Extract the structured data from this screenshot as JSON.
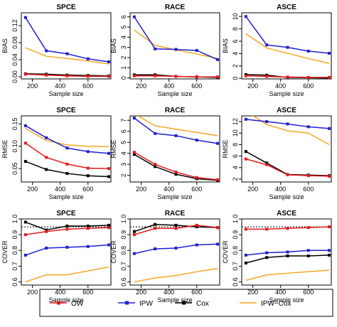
{
  "figure": {
    "series": [
      {
        "name": "OW",
        "color": "#e41a1c"
      },
      {
        "name": "IPW",
        "color": "#1f1fd0"
      },
      {
        "name": "Cox",
        "color": "#000000"
      },
      {
        "name": "IPW−Cox",
        "color": "#f5a623"
      }
    ]
  },
  "chart_data": [
    {
      "type": "line",
      "title": "SPCE",
      "xlabel": "Sample size",
      "ylabel": "BIAS",
      "x": [
        150,
        300,
        450,
        600,
        750
      ],
      "xlim": [
        120,
        765
      ],
      "xticks": [
        200,
        400,
        600
      ],
      "ylim": [
        -0.005,
        0.15
      ],
      "yticks": [
        0.0,
        0.04,
        0.08,
        0.12
      ],
      "yticklabels": [
        "0.00",
        "0.04",
        "0.08",
        "0.12"
      ],
      "series": [
        {
          "name": "OW",
          "values": [
            0.006,
            0.004,
            0.002,
            0.001,
            0.001
          ]
        },
        {
          "name": "IPW",
          "values": [
            0.139,
            0.061,
            0.054,
            0.042,
            0.035
          ]
        },
        {
          "name": "Cox",
          "values": [
            0.007,
            0.006,
            0.004,
            0.003,
            0.002
          ]
        },
        {
          "name": "IPW−Cox",
          "values": [
            0.068,
            0.048,
            0.043,
            0.037,
            0.03
          ]
        }
      ]
    },
    {
      "type": "line",
      "title": "RACE",
      "xlabel": "Sample size",
      "ylabel": "BIAS",
      "x": [
        150,
        300,
        450,
        600,
        750
      ],
      "xlim": [
        120,
        765
      ],
      "xticks": [
        200,
        400,
        600
      ],
      "ylim": [
        -0.1,
        6.4
      ],
      "yticks": [
        0,
        1,
        2,
        3,
        4,
        5,
        6
      ],
      "yticklabels": [
        "0",
        "1",
        "2",
        "3",
        "4",
        "5",
        "6"
      ],
      "series": [
        {
          "name": "OW",
          "values": [
            0.2,
            0.2,
            0.15,
            0.1,
            0.1
          ]
        },
        {
          "name": "IPW",
          "values": [
            6.0,
            2.85,
            2.8,
            2.7,
            1.8
          ]
        },
        {
          "name": "Cox",
          "values": [
            0.3,
            0.3,
            0.15,
            0.1,
            0.05
          ]
        },
        {
          "name": "IPW−Cox",
          "values": [
            4.7,
            3.2,
            2.75,
            2.35,
            1.9
          ]
        }
      ]
    },
    {
      "type": "line",
      "title": "ASCE",
      "xlabel": "Sample size",
      "ylabel": "BIAS",
      "x": [
        150,
        300,
        450,
        600,
        750
      ],
      "xlim": [
        120,
        765
      ],
      "xticks": [
        200,
        400,
        600
      ],
      "ylim": [
        -0.1,
        10.6
      ],
      "yticks": [
        0,
        2,
        4,
        6,
        8,
        10
      ],
      "yticklabels": [
        "0",
        "2",
        "4",
        "6",
        "8",
        "10"
      ],
      "series": [
        {
          "name": "OW",
          "values": [
            0.4,
            0.3,
            0.2,
            0.15,
            0.15
          ]
        },
        {
          "name": "IPW",
          "values": [
            10.0,
            5.4,
            5.0,
            4.4,
            4.05
          ]
        },
        {
          "name": "Cox",
          "values": [
            0.6,
            0.5,
            0.15,
            0.1,
            0.05
          ]
        },
        {
          "name": "IPW−Cox",
          "values": [
            7.2,
            4.9,
            4.05,
            3.2,
            2.4
          ]
        }
      ]
    },
    {
      "type": "line",
      "title": "SPCE",
      "xlabel": "Sample size",
      "ylabel": "RMSE",
      "x": [
        150,
        300,
        450,
        600,
        750
      ],
      "xlim": [
        120,
        765
      ],
      "xticks": [
        200,
        400,
        600
      ],
      "ylim": [
        0.02,
        0.168
      ],
      "yticks": [
        0.05,
        0.1,
        0.15
      ],
      "yticklabels": [
        "0.05",
        "0.10",
        "0.15"
      ],
      "series": [
        {
          "name": "OW",
          "values": [
            0.107,
            0.075,
            0.06,
            0.051,
            0.05
          ]
        },
        {
          "name": "IPW",
          "values": [
            0.146,
            0.119,
            0.096,
            0.088,
            0.084
          ]
        },
        {
          "name": "Cox",
          "values": [
            0.066,
            0.048,
            0.039,
            0.034,
            0.032
          ]
        },
        {
          "name": "IPW−Cox",
          "values": [
            0.14,
            0.113,
            0.103,
            0.1,
            0.099
          ]
        }
      ]
    },
    {
      "type": "line",
      "title": "RACE",
      "xlabel": "Sample size",
      "ylabel": "RMSE",
      "x": [
        150,
        300,
        450,
        600,
        750
      ],
      "xlim": [
        120,
        765
      ],
      "xticks": [
        200,
        400,
        600
      ],
      "ylim": [
        1.4,
        7.4
      ],
      "yticks": [
        2,
        3,
        4,
        5,
        6,
        7
      ],
      "yticklabels": [
        "2",
        "3",
        "4",
        "5",
        "6",
        "7"
      ],
      "series": [
        {
          "name": "OW",
          "values": [
            4.1,
            3.0,
            2.3,
            1.8,
            1.6
          ]
        },
        {
          "name": "IPW",
          "values": [
            7.2,
            5.8,
            5.6,
            5.2,
            4.9
          ]
        },
        {
          "name": "Cox",
          "values": [
            3.9,
            2.8,
            2.1,
            1.7,
            1.55
          ]
        },
        {
          "name": "IPW−Cox",
          "values": [
            7.6,
            6.5,
            6.2,
            5.9,
            5.6
          ]
        }
      ]
    },
    {
      "type": "line",
      "title": "ASCE",
      "xlabel": "Sample size",
      "ylabel": "RMSE",
      "x": [
        150,
        300,
        450,
        600,
        750
      ],
      "xlim": [
        120,
        765
      ],
      "xticks": [
        200,
        400,
        600
      ],
      "ylim": [
        1.5,
        13
      ],
      "yticks": [
        2,
        4,
        6,
        8,
        10,
        12
      ],
      "yticklabels": [
        "2",
        "4",
        "6",
        "8",
        "10",
        "12"
      ],
      "series": [
        {
          "name": "OW",
          "values": [
            5.5,
            4.5,
            2.75,
            2.6,
            2.5
          ]
        },
        {
          "name": "IPW",
          "values": [
            12.4,
            12.0,
            11.6,
            11.1,
            10.8
          ]
        },
        {
          "name": "Cox",
          "values": [
            6.8,
            4.8,
            2.8,
            2.7,
            2.6
          ]
        },
        {
          "name": "IPW−Cox",
          "values": [
            13.8,
            11.5,
            10.4,
            10.0,
            8.0
          ]
        }
      ]
    },
    {
      "type": "line",
      "title": "SPCE",
      "xlabel": "Sample size",
      "ylabel": "COVER",
      "x": [
        150,
        300,
        450,
        600,
        750
      ],
      "xlim": [
        120,
        765
      ],
      "xticks": [
        200,
        400,
        600
      ],
      "ylim": [
        0.58,
        1.0
      ],
      "yticks": [
        0.6,
        0.7,
        0.8,
        0.9,
        1.0
      ],
      "yticklabels": [
        "0.6",
        "0.7",
        "0.8",
        "0.9",
        "1.0"
      ],
      "reference_line": 0.95,
      "series": [
        {
          "name": "OW",
          "values": [
            0.9,
            0.92,
            0.935,
            0.94,
            0.945
          ]
        },
        {
          "name": "IPW",
          "values": [
            0.77,
            0.815,
            0.82,
            0.825,
            0.835
          ]
        },
        {
          "name": "Cox",
          "values": [
            0.98,
            0.93,
            0.955,
            0.955,
            0.96
          ]
        },
        {
          "name": "IPW−Cox",
          "values": [
            0.6,
            0.645,
            0.645,
            0.67,
            0.695
          ]
        }
      ]
    },
    {
      "type": "line",
      "title": "RACE",
      "xlabel": "Sample size",
      "ylabel": "COVER",
      "x": [
        150,
        300,
        450,
        600,
        750
      ],
      "xlim": [
        120,
        765
      ],
      "xticks": [
        200,
        400,
        600
      ],
      "ylim": [
        0.58,
        1.0
      ],
      "yticks": [
        0.6,
        0.7,
        0.8,
        0.9,
        1.0
      ],
      "yticklabels": [
        "0.6",
        "0.7",
        "0.8",
        "0.9",
        "1.0"
      ],
      "reference_line": 0.95,
      "series": [
        {
          "name": "OW",
          "values": [
            0.9,
            0.94,
            0.94,
            0.96,
            0.945
          ]
        },
        {
          "name": "IPW",
          "values": [
            0.78,
            0.81,
            0.815,
            0.835,
            0.84
          ]
        },
        {
          "name": "Cox",
          "values": [
            0.92,
            0.965,
            0.96,
            0.95,
            0.945
          ]
        },
        {
          "name": "IPW−Cox",
          "values": [
            0.6,
            0.625,
            0.64,
            0.665,
            0.685
          ]
        }
      ]
    },
    {
      "type": "line",
      "title": "ASCE",
      "xlabel": "Sample size",
      "ylabel": "COVER",
      "x": [
        150,
        300,
        450,
        600,
        750
      ],
      "xlim": [
        120,
        765
      ],
      "xticks": [
        200,
        400,
        600
      ],
      "ylim": [
        0.58,
        1.0
      ],
      "yticks": [
        0.6,
        0.7,
        0.8,
        0.9,
        1.0
      ],
      "yticklabels": [
        "0.6",
        "0.7",
        "0.8",
        "0.9",
        "1.0"
      ],
      "reference_line": 0.95,
      "series": [
        {
          "name": "OW",
          "values": [
            0.935,
            0.935,
            0.94,
            0.945,
            0.95
          ]
        },
        {
          "name": "IPW",
          "values": [
            0.77,
            0.785,
            0.79,
            0.8,
            0.8
          ]
        },
        {
          "name": "Cox",
          "values": [
            0.72,
            0.755,
            0.765,
            0.765,
            0.77
          ]
        },
        {
          "name": "IPW−Cox",
          "values": [
            0.61,
            0.645,
            0.655,
            0.665,
            0.675
          ]
        }
      ]
    }
  ]
}
